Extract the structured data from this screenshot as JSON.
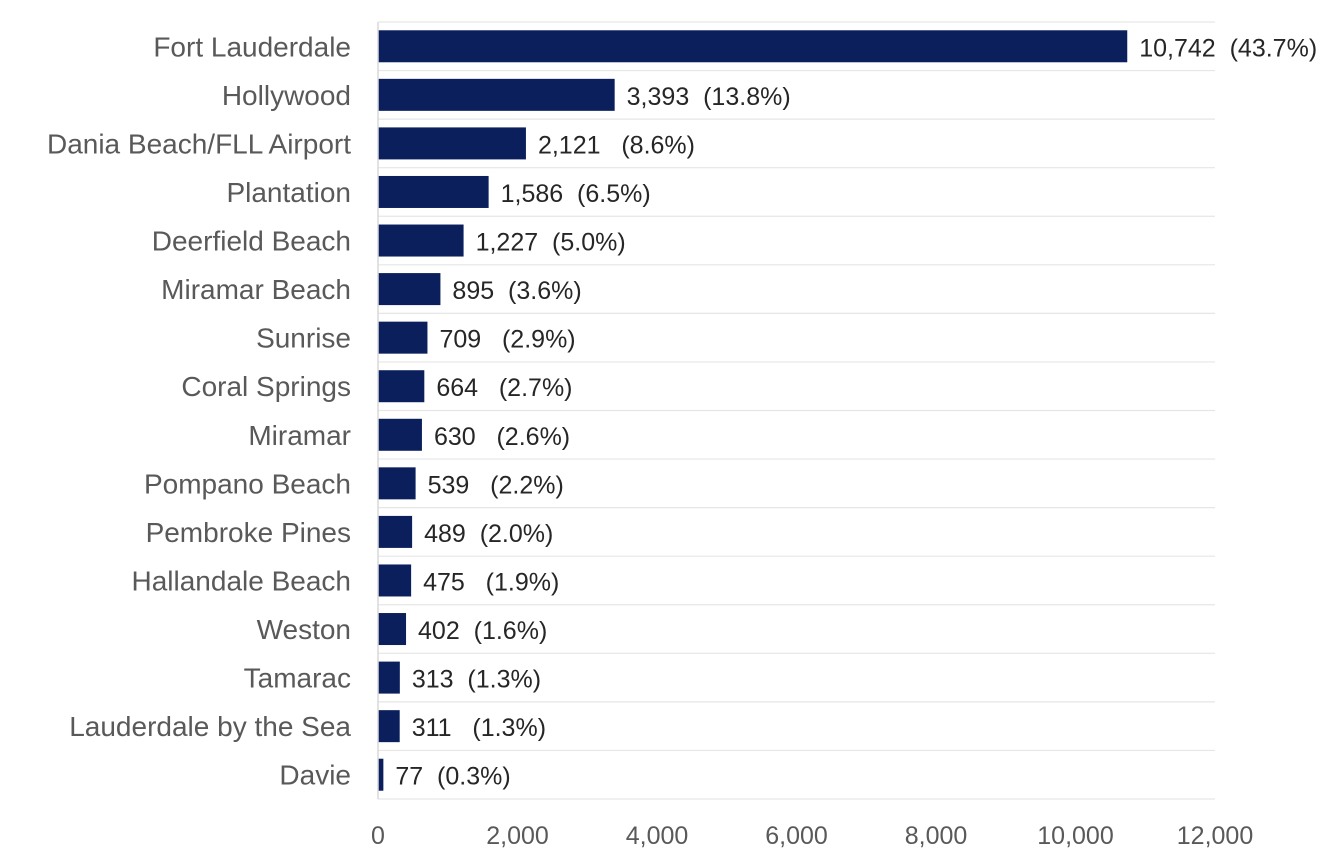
{
  "chart_data": {
    "type": "bar",
    "orientation": "horizontal",
    "title": "",
    "xlabel": "",
    "ylabel": "",
    "categories": [
      "Fort Lauderdale",
      "Hollywood",
      "Dania Beach/FLL Airport",
      "Plantation",
      "Deerfield Beach",
      "Miramar Beach",
      "Sunrise",
      "Coral Springs",
      "Miramar",
      "Pompano Beach",
      "Pembroke Pines",
      "Hallandale Beach",
      "Weston",
      "Tamarac",
      "Lauderdale by the Sea",
      "Davie"
    ],
    "values": [
      10742,
      3393,
      2121,
      1586,
      1227,
      895,
      709,
      664,
      630,
      539,
      489,
      475,
      402,
      313,
      311,
      77
    ],
    "data_labels": [
      "10,742  (43.7%)",
      "3,393  (13.8%)",
      "2,121   (8.6%)",
      "1,586  (6.5%)",
      "1,227  (5.0%)",
      "895  (3.6%)",
      "709   (2.9%)",
      "664   (2.7%)",
      "630   (2.6%)",
      "539   (2.2%)",
      "489  (2.0%)",
      "475   (1.9%)",
      "402  (1.6%)",
      "313  (1.3%)",
      "311   (1.3%)",
      "77  (0.3%)"
    ],
    "xlim": [
      0,
      12000
    ],
    "x_ticks": [
      0,
      2000,
      4000,
      6000,
      8000,
      10000,
      12000
    ],
    "x_tick_labels": [
      "0",
      "2,000",
      "4,000",
      "6,000",
      "8,000",
      "10,000",
      "12,000"
    ],
    "grid": true,
    "legend": "none",
    "bar_color": "#0A1F5C",
    "grid_color": "#E6E6E6",
    "axis_color": "#D9D9D9"
  }
}
